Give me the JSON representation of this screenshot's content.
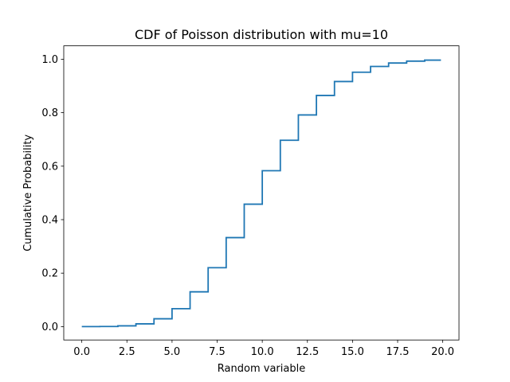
{
  "chart_data": {
    "type": "line",
    "step": "post",
    "title": "CDF of Poisson distribution with mu=10",
    "xlabel": "Random variable",
    "ylabel": "Cumulative Probability",
    "xlim": [
      -1.0,
      20.9
    ],
    "ylim": [
      -0.05,
      1.05
    ],
    "grid": false,
    "legend": "none",
    "xticks": [
      0,
      2.5,
      5,
      7.5,
      10,
      12.5,
      15,
      17.5,
      20
    ],
    "xtick_labels": [
      "0.0",
      "2.5",
      "5.0",
      "7.5",
      "10.0",
      "12.5",
      "15.0",
      "17.5",
      "20.0"
    ],
    "yticks": [
      0,
      0.2,
      0.4,
      0.6,
      0.8,
      1.0
    ],
    "ytick_labels": [
      "0.0",
      "0.2",
      "0.4",
      "0.6",
      "0.8",
      "1.0"
    ],
    "colors": {
      "line": "#1f77b4",
      "axes": "#000000"
    },
    "series": [
      {
        "x": [
          0,
          1,
          2,
          3,
          4,
          5,
          6,
          7,
          8,
          9,
          10,
          11,
          12,
          13,
          14,
          15,
          16,
          17,
          18,
          19,
          19.9
        ],
        "y": [
          0.0,
          0.0005,
          0.0028,
          0.0103,
          0.0293,
          0.0671,
          0.1301,
          0.2202,
          0.3328,
          0.4579,
          0.583,
          0.6968,
          0.7916,
          0.8645,
          0.9165,
          0.9513,
          0.973,
          0.9857,
          0.9928,
          0.9965,
          0.9965
        ]
      }
    ]
  }
}
